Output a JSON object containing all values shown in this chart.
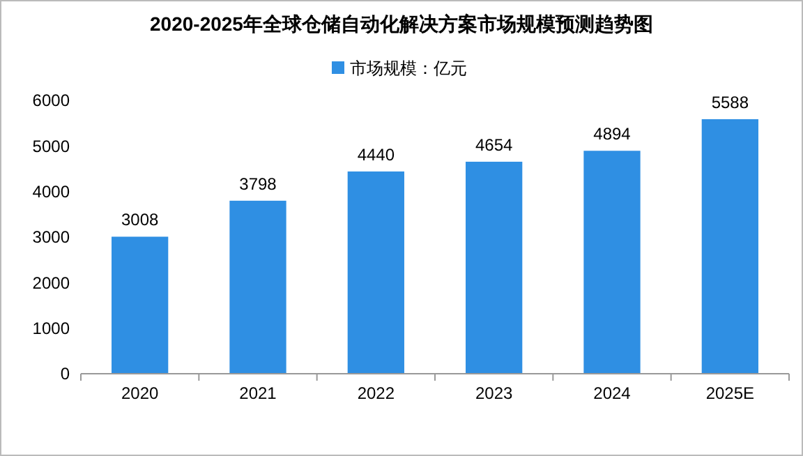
{
  "chart_data": {
    "type": "bar",
    "title": "2020-2025年全球仓储自动化解决方案市场规模预测趋势图",
    "categories": [
      "2020",
      "2021",
      "2022",
      "2023",
      "2024",
      "2025E"
    ],
    "series": [
      {
        "name": "市场规模：亿元",
        "color": "#2f8fe3",
        "values": [
          3008,
          3798,
          4440,
          4654,
          4894,
          5588
        ]
      }
    ],
    "ylim": [
      0,
      6000
    ],
    "yticks": [
      0,
      1000,
      2000,
      3000,
      4000,
      5000,
      6000
    ],
    "data_labels": true,
    "legend": "top"
  }
}
